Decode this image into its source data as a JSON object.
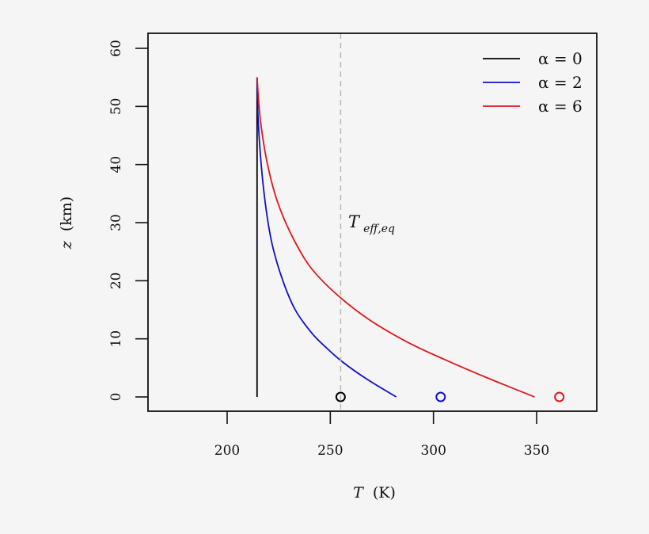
{
  "chart_data": {
    "type": "line",
    "title": "",
    "xlabel": "T (K)",
    "ylabel": "z (km)",
    "xlim": [
      162,
      378
    ],
    "ylim": [
      -2.4,
      62.5
    ],
    "grid": false,
    "legend_position": "top-right",
    "x_ticks": [
      200,
      250,
      300,
      350
    ],
    "y_ticks": [
      0,
      10,
      20,
      30,
      40,
      50,
      60
    ],
    "x_tick_labels": [
      "200",
      "250",
      "300",
      "350"
    ],
    "y_tick_labels": [
      "0",
      "10",
      "20",
      "30",
      "40",
      "50",
      "60"
    ],
    "series": [
      {
        "name": "α = 0",
        "color": "#000000",
        "points": [
          [
            214.5,
            0
          ],
          [
            214.5,
            55
          ]
        ]
      },
      {
        "name": "α = 2",
        "color": "#1010c8",
        "points": [
          [
            282,
            0
          ],
          [
            268,
            3
          ],
          [
            256,
            6
          ],
          [
            248,
            8.5
          ],
          [
            241,
            11
          ],
          [
            233,
            15
          ],
          [
            227,
            20
          ],
          [
            222,
            26
          ],
          [
            219,
            32
          ],
          [
            216.5,
            40
          ],
          [
            215,
            48
          ],
          [
            214.5,
            55
          ]
        ]
      },
      {
        "name": "α = 6",
        "color": "#e01818",
        "points": [
          [
            349,
            0
          ],
          [
            328,
            3
          ],
          [
            305,
            6.5
          ],
          [
            287,
            9.5
          ],
          [
            268,
            13.5
          ],
          [
            252,
            18
          ],
          [
            240,
            22.5
          ],
          [
            231,
            28
          ],
          [
            224,
            34
          ],
          [
            219,
            41
          ],
          [
            216,
            48
          ],
          [
            214.5,
            55
          ]
        ]
      }
    ],
    "markers": [
      {
        "name": "surface α = 0",
        "color": "#000000",
        "x": 255,
        "y": 0,
        "shape": "open-circle"
      },
      {
        "name": "surface α = 2",
        "color": "#1010c8",
        "x": 303.5,
        "y": 0,
        "shape": "open-circle"
      },
      {
        "name": "surface α = 6",
        "color": "#e01818",
        "x": 361,
        "y": 0,
        "shape": "open-circle"
      }
    ],
    "reference_lines": [
      {
        "orientation": "vertical",
        "x": 255,
        "style": "dashed",
        "color": "#bbbbbb",
        "label": "T_eff,eq"
      }
    ],
    "annotations": [
      {
        "text": "T",
        "subscript": "eff,eq",
        "x": 258,
        "y": 30
      }
    ]
  },
  "legend": {
    "entries": [
      {
        "label": "α = 0",
        "color": "#000000"
      },
      {
        "label": "α = 2",
        "color": "#1010c8"
      },
      {
        "label": "α = 6",
        "color": "#e01818"
      }
    ]
  },
  "axes": {
    "x_label_main": "T",
    "x_label_unit": "(K)",
    "y_label_main": "z",
    "y_label_unit": "(km)"
  },
  "annotation": {
    "main": "T",
    "sub": "eff,eq"
  }
}
